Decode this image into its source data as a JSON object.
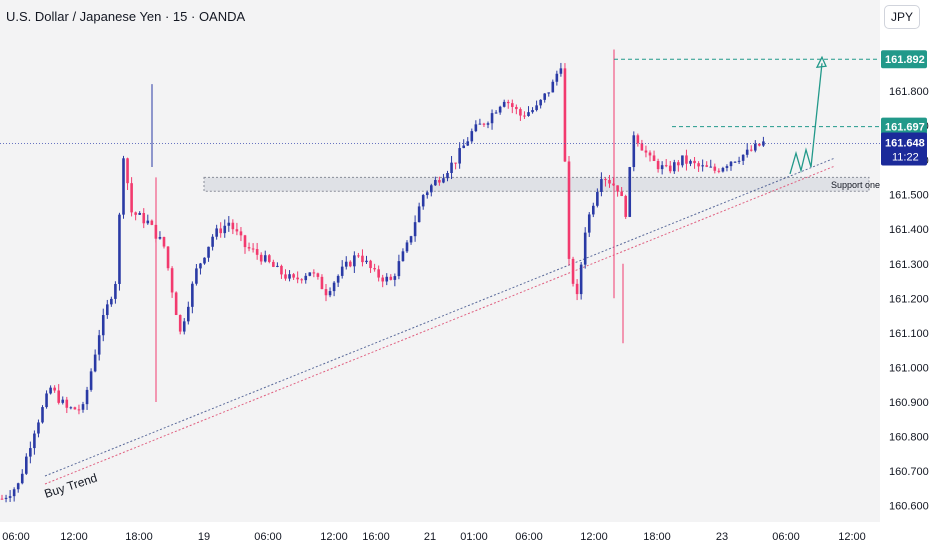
{
  "header": {
    "title": "U.S. Dollar / Japanese Yen · 15 · OANDA",
    "currency_button": "JPY"
  },
  "colors": {
    "up": "#2a3aa5",
    "down": "#f23a6e",
    "teal": "#22998a",
    "current_price_bg": "#1b2a9a"
  },
  "chart_data": {
    "type": "candlestick",
    "title": "U.S. Dollar / Japanese Yen · 15 · OANDA",
    "y_ticks": [
      "161.800",
      "161.700",
      "161.600",
      "161.500",
      "161.400",
      "161.300",
      "161.200",
      "161.100",
      "161.000",
      "160.900",
      "160.800",
      "160.700",
      "160.600"
    ],
    "x_ticks": [
      "06:00",
      "12:00",
      "18:00",
      "19",
      "06:00",
      "12:00",
      "16:00",
      "21",
      "01:00",
      "06:00",
      "12:00",
      "18:00",
      "23",
      "06:00",
      "12:00"
    ],
    "ylim": [
      160.55,
      161.98
    ],
    "price_tags": [
      {
        "label": "161.892",
        "value": 161.892,
        "style": "target"
      },
      {
        "label": "161.697",
        "value": 161.697,
        "style": "target"
      }
    ],
    "current_price": {
      "label": "161.648",
      "countdown": "11:22",
      "value": 161.648
    },
    "annotations": [
      "Buy Trend",
      "Support one"
    ],
    "path_points": [
      [
        0,
        160.62
      ],
      [
        4,
        160.66
      ],
      [
        8,
        160.82
      ],
      [
        12,
        160.94
      ],
      [
        16,
        160.88
      ],
      [
        20,
        160.88
      ],
      [
        24,
        161.1
      ],
      [
        28,
        161.25
      ],
      [
        30,
        161.62
      ],
      [
        32,
        161.45
      ],
      [
        36,
        161.42
      ],
      [
        40,
        161.35
      ],
      [
        44,
        161.1
      ],
      [
        48,
        161.28
      ],
      [
        52,
        161.38
      ],
      [
        56,
        161.42
      ],
      [
        60,
        161.35
      ],
      [
        64,
        161.32
      ],
      [
        68,
        161.28
      ],
      [
        72,
        161.25
      ],
      [
        76,
        161.28
      ],
      [
        80,
        161.22
      ],
      [
        84,
        161.28
      ],
      [
        88,
        161.33
      ],
      [
        92,
        161.27
      ],
      [
        96,
        161.25
      ],
      [
        100,
        161.35
      ],
      [
        104,
        161.5
      ],
      [
        108,
        161.55
      ],
      [
        112,
        161.6
      ],
      [
        116,
        161.68
      ],
      [
        120,
        161.72
      ],
      [
        124,
        161.78
      ],
      [
        128,
        161.73
      ],
      [
        132,
        161.75
      ],
      [
        136,
        161.82
      ],
      [
        138,
        161.88
      ],
      [
        140,
        161.3
      ],
      [
        142,
        161.2
      ],
      [
        144,
        161.4
      ],
      [
        148,
        161.56
      ],
      [
        152,
        161.52
      ],
      [
        154,
        161.45
      ],
      [
        156,
        161.68
      ],
      [
        160,
        161.6
      ],
      [
        164,
        161.57
      ],
      [
        168,
        161.6
      ],
      [
        172,
        161.58
      ],
      [
        176,
        161.57
      ],
      [
        180,
        161.6
      ],
      [
        184,
        161.62
      ],
      [
        188,
        161.65
      ]
    ]
  }
}
